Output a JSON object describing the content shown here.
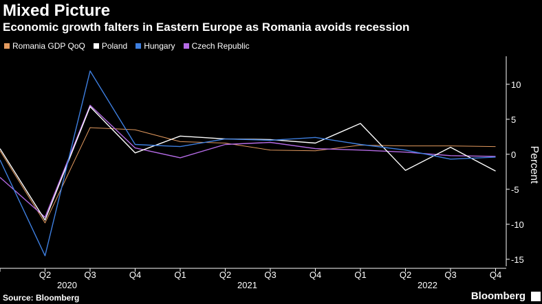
{
  "header": {
    "title": "Mixed Picture",
    "subtitle": "Economic growth falters in Eastern Europe as Romania avoids recession"
  },
  "footer": {
    "source": "Source: Bloomberg",
    "brand": "Bloomberg"
  },
  "chart_data": {
    "type": "line",
    "title": "Mixed Picture",
    "subtitle": "Economic growth falters in Eastern Europe as Romania avoids recession",
    "ylabel": "Percent",
    "xlabel": "",
    "x": [
      "Q1 2020",
      "Q2 2020",
      "Q3 2020",
      "Q4 2020",
      "Q1 2021",
      "Q2 2021",
      "Q3 2021",
      "Q4 2021",
      "Q1 2022",
      "Q2 2022",
      "Q3 2022",
      "Q4 2022"
    ],
    "x_tick_labels": [
      "",
      "Q2",
      "Q3",
      "Q4",
      "Q1",
      "Q2",
      "Q3",
      "Q4",
      "Q1",
      "Q2",
      "Q3",
      "Q4"
    ],
    "x_year_labels": [
      {
        "label": "2020",
        "at": "Q2 2020"
      },
      {
        "label": "2021",
        "at": "Q2 2021"
      },
      {
        "label": "2022",
        "at": "Q2 2022"
      }
    ],
    "yticks": [
      10,
      5,
      0,
      -5,
      -10,
      -15
    ],
    "ylim": [
      -16,
      14
    ],
    "y_axis_side": "right",
    "legend_position": "top-left",
    "grid": false,
    "series": [
      {
        "name": "Romania GDP QoQ",
        "color": "#e39a5f",
        "values": [
          0.5,
          -9.8,
          3.8,
          3.5,
          1.8,
          1.6,
          0.6,
          0.5,
          1.3,
          1.2,
          1.2,
          1.1
        ]
      },
      {
        "name": "Poland",
        "color": "#ffffff",
        "values": [
          0.8,
          -9.4,
          6.8,
          0.2,
          2.6,
          2.2,
          2.1,
          1.6,
          4.4,
          -2.3,
          1.0,
          -2.4
        ]
      },
      {
        "name": "Hungary",
        "color": "#3e7fe0",
        "values": [
          -0.8,
          -14.5,
          11.9,
          1.4,
          1.1,
          2.2,
          2.0,
          2.4,
          1.4,
          0.6,
          -0.7,
          -0.4
        ]
      },
      {
        "name": "Czech Republic",
        "color": "#b56be6",
        "values": [
          -3.3,
          -9.0,
          7.0,
          0.9,
          -0.5,
          1.4,
          1.7,
          0.8,
          0.6,
          0.3,
          -0.2,
          -0.3
        ]
      }
    ]
  }
}
